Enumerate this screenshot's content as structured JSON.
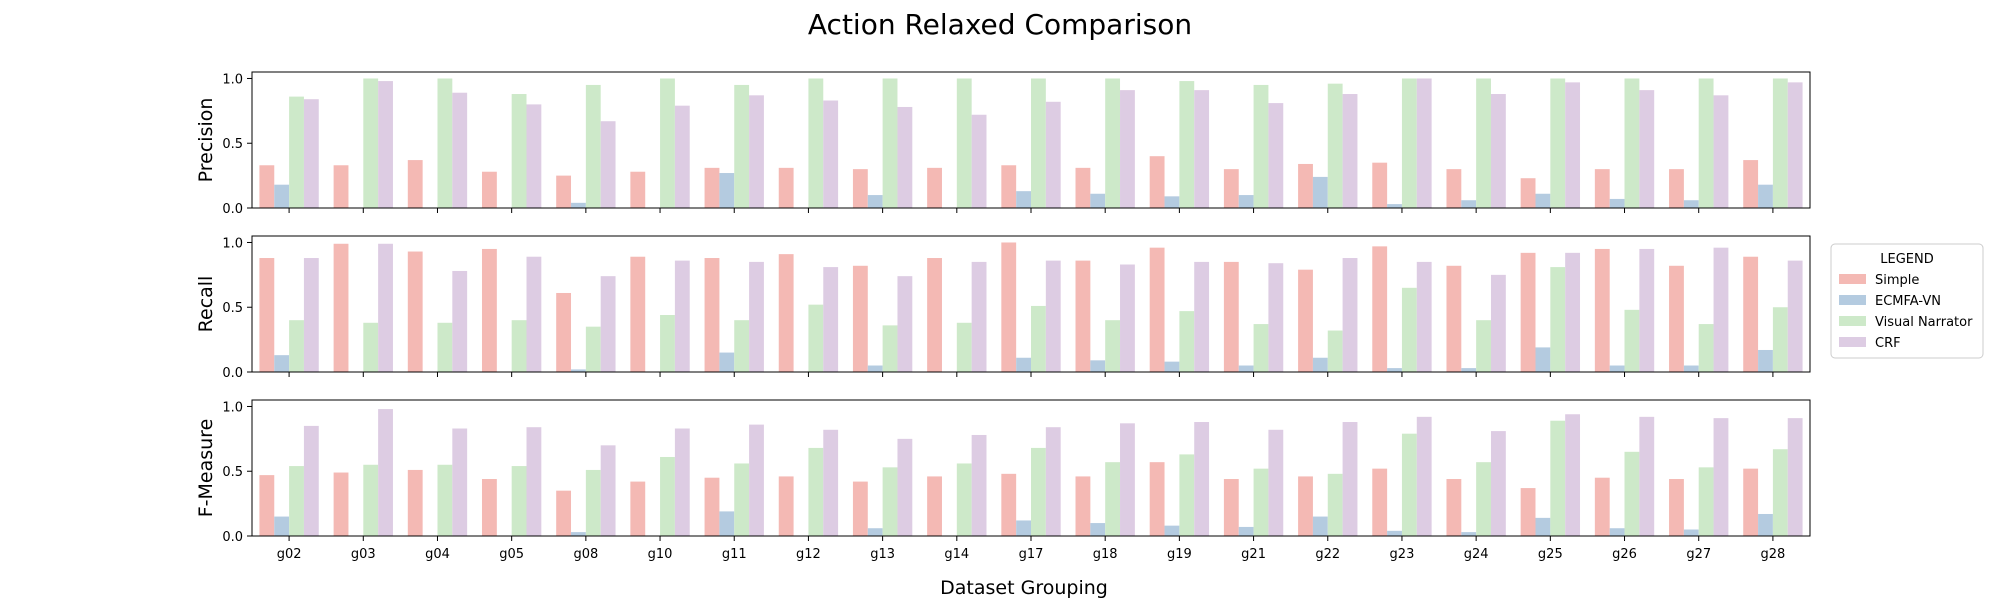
{
  "chart_data": {
    "type": "bar",
    "title": "Action Relaxed Comparison",
    "xlabel": "Dataset Grouping",
    "categories": [
      "g02",
      "g03",
      "g04",
      "g05",
      "g08",
      "g10",
      "g11",
      "g12",
      "g13",
      "g14",
      "g17",
      "g18",
      "g19",
      "g21",
      "g22",
      "g23",
      "g24",
      "g25",
      "g26",
      "g27",
      "g28"
    ],
    "legend": {
      "title": "LEGEND",
      "placement": "right",
      "entries": [
        "Simple",
        "ECMFA-VN",
        "Visual Narrator",
        "CRF"
      ]
    },
    "colors": {
      "Simple": "#f4b9b4",
      "ECMFA-VN": "#b4cbe0",
      "Visual Narrator": "#cde9c9",
      "CRF": "#ddcce3"
    },
    "panels": [
      {
        "ylabel": "Precision",
        "ylim": [
          0,
          1.05
        ],
        "yticks": [
          "0.0",
          "0.5",
          "1.0"
        ],
        "series": [
          {
            "name": "Simple",
            "values": [
              0.33,
              0.33,
              0.37,
              0.28,
              0.25,
              0.28,
              0.31,
              0.31,
              0.3,
              0.31,
              0.33,
              0.31,
              0.4,
              0.3,
              0.34,
              0.35,
              0.3,
              0.23,
              0.3,
              0.3,
              0.37
            ]
          },
          {
            "name": "ECMFA-VN",
            "values": [
              0.18,
              0,
              0,
              0,
              0.04,
              0,
              0.27,
              0,
              0.1,
              0,
              0.13,
              0.11,
              0.09,
              0.1,
              0.24,
              0.03,
              0.06,
              0.11,
              0.07,
              0.06,
              0.18
            ]
          },
          {
            "name": "Visual Narrator",
            "values": [
              0.86,
              1.0,
              1.0,
              0.88,
              0.95,
              1.0,
              0.95,
              1.0,
              1.0,
              1.0,
              1.0,
              1.0,
              0.98,
              0.95,
              0.96,
              1.0,
              1.0,
              1.0,
              1.0,
              1.0,
              1.0
            ]
          },
          {
            "name": "CRF",
            "values": [
              0.84,
              0.98,
              0.89,
              0.8,
              0.67,
              0.79,
              0.87,
              0.83,
              0.78,
              0.72,
              0.82,
              0.91,
              0.91,
              0.81,
              0.88,
              1.0,
              0.88,
              0.97,
              0.91,
              0.87,
              0.97
            ]
          }
        ]
      },
      {
        "ylabel": "Recall",
        "ylim": [
          0,
          1.05
        ],
        "yticks": [
          "0.0",
          "0.5",
          "1.0"
        ],
        "series": [
          {
            "name": "Simple",
            "values": [
              0.88,
              0.99,
              0.93,
              0.95,
              0.61,
              0.89,
              0.88,
              0.91,
              0.82,
              0.88,
              1.0,
              0.86,
              0.96,
              0.85,
              0.79,
              0.97,
              0.82,
              0.92,
              0.95,
              0.82,
              0.89
            ]
          },
          {
            "name": "ECMFA-VN",
            "values": [
              0.13,
              0,
              0,
              0,
              0.02,
              0,
              0.15,
              0,
              0.05,
              0,
              0.11,
              0.09,
              0.08,
              0.05,
              0.11,
              0.03,
              0.03,
              0.19,
              0.05,
              0.05,
              0.17
            ]
          },
          {
            "name": "Visual Narrator",
            "values": [
              0.4,
              0.38,
              0.38,
              0.4,
              0.35,
              0.44,
              0.4,
              0.52,
              0.36,
              0.38,
              0.51,
              0.4,
              0.47,
              0.37,
              0.32,
              0.65,
              0.4,
              0.81,
              0.48,
              0.37,
              0.5
            ]
          },
          {
            "name": "CRF",
            "values": [
              0.88,
              0.99,
              0.78,
              0.89,
              0.74,
              0.86,
              0.85,
              0.81,
              0.74,
              0.85,
              0.86,
              0.83,
              0.85,
              0.84,
              0.88,
              0.85,
              0.75,
              0.92,
              0.95,
              0.96,
              0.86
            ]
          }
        ]
      },
      {
        "ylabel": "F-Measure",
        "ylim": [
          0,
          1.05
        ],
        "yticks": [
          "0.0",
          "0.5",
          "1.0"
        ],
        "series": [
          {
            "name": "Simple",
            "values": [
              0.47,
              0.49,
              0.51,
              0.44,
              0.35,
              0.42,
              0.45,
              0.46,
              0.42,
              0.46,
              0.48,
              0.46,
              0.57,
              0.44,
              0.46,
              0.52,
              0.44,
              0.37,
              0.45,
              0.44,
              0.52
            ]
          },
          {
            "name": "ECMFA-VN",
            "values": [
              0.15,
              0,
              0,
              0,
              0.03,
              0,
              0.19,
              0,
              0.06,
              0,
              0.12,
              0.1,
              0.08,
              0.07,
              0.15,
              0.04,
              0.03,
              0.14,
              0.06,
              0.05,
              0.17
            ]
          },
          {
            "name": "Visual Narrator",
            "values": [
              0.54,
              0.55,
              0.55,
              0.54,
              0.51,
              0.61,
              0.56,
              0.68,
              0.53,
              0.56,
              0.68,
              0.57,
              0.63,
              0.52,
              0.48,
              0.79,
              0.57,
              0.89,
              0.65,
              0.53,
              0.67
            ]
          },
          {
            "name": "CRF",
            "values": [
              0.85,
              0.98,
              0.83,
              0.84,
              0.7,
              0.83,
              0.86,
              0.82,
              0.75,
              0.78,
              0.84,
              0.87,
              0.88,
              0.82,
              0.88,
              0.92,
              0.81,
              0.94,
              0.92,
              0.91,
              0.91
            ]
          }
        ]
      }
    ]
  }
}
